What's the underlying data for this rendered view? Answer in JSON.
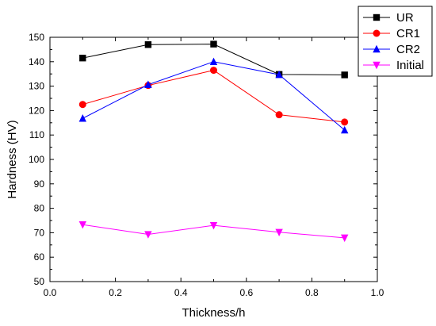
{
  "chart_data": {
    "type": "line",
    "xlabel": "Thickness/h",
    "ylabel": "Hardness (HV)",
    "xlim": [
      0.0,
      1.0
    ],
    "ylim": [
      50,
      150
    ],
    "xticks": [
      "0.0",
      "0.2",
      "0.4",
      "0.6",
      "0.8",
      "1.0"
    ],
    "yticks": [
      "50",
      "60",
      "70",
      "80",
      "90",
      "100",
      "110",
      "120",
      "130",
      "140",
      "150"
    ],
    "x": [
      0.1,
      0.3,
      0.5,
      0.7,
      0.9
    ],
    "grid": false,
    "legend_position": "top-right, outside plot area",
    "series": [
      {
        "name": "UR",
        "values": [
          141.5,
          147.0,
          147.2,
          134.8,
          134.6
        ],
        "color": "#000000",
        "marker": "square"
      },
      {
        "name": "CR1",
        "values": [
          122.5,
          130.3,
          136.5,
          118.3,
          115.3
        ],
        "color": "#ff0000",
        "marker": "circle"
      },
      {
        "name": "CR2",
        "values": [
          116.8,
          130.6,
          140.0,
          134.7,
          112.0
        ],
        "color": "#0000ff",
        "marker": "triangle-up"
      },
      {
        "name": "Initial",
        "values": [
          73.3,
          69.3,
          73.0,
          70.2,
          67.9
        ],
        "color": "#ff00ff",
        "marker": "triangle-down"
      }
    ]
  }
}
